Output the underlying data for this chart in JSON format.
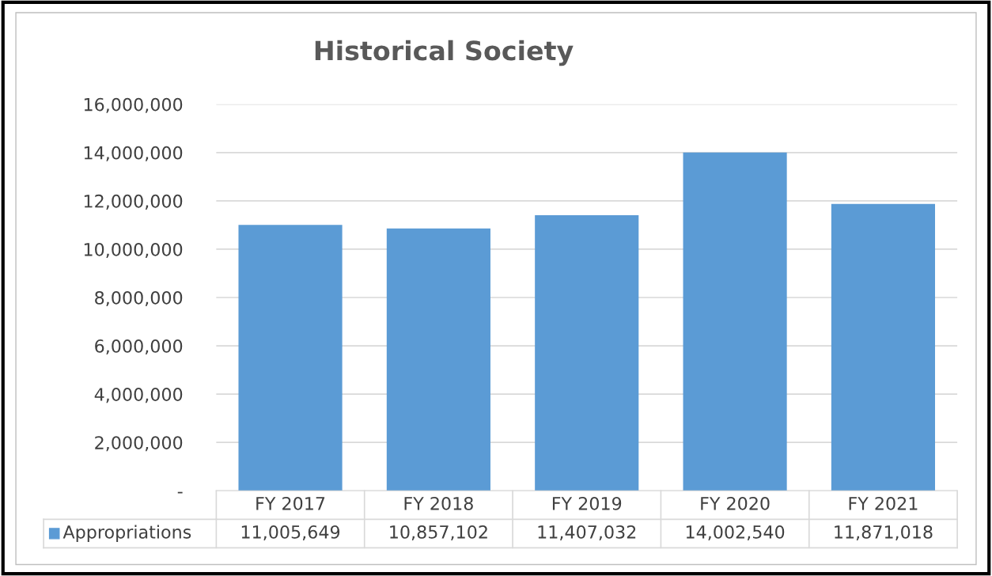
{
  "chart_data": {
    "type": "bar",
    "title": "Historical Society",
    "categories": [
      "FY 2017",
      "FY 2018",
      "FY 2019",
      "FY 2020",
      "FY 2021"
    ],
    "series": [
      {
        "name": "Appropriations",
        "color": "#5b9bd5",
        "values": [
          11005649,
          10857102,
          11407032,
          14002540,
          11871018
        ],
        "value_labels": [
          "11,005,649",
          "10,857,102",
          "11,407,032",
          "14,002,540",
          "11,871,018"
        ]
      }
    ],
    "ylim": [
      0,
      16000000
    ],
    "yticks": [
      {
        "value": 0,
        "label": "-"
      },
      {
        "value": 2000000,
        "label": "2,000,000"
      },
      {
        "value": 4000000,
        "label": "4,000,000"
      },
      {
        "value": 6000000,
        "label": "6,000,000"
      },
      {
        "value": 8000000,
        "label": "8,000,000"
      },
      {
        "value": 10000000,
        "label": "10,000,000"
      },
      {
        "value": 12000000,
        "label": "12,000,000"
      },
      {
        "value": 14000000,
        "label": "14,000,000"
      },
      {
        "value": 16000000,
        "label": "16,000,000"
      }
    ],
    "grid": "y",
    "legend": "bottom"
  }
}
